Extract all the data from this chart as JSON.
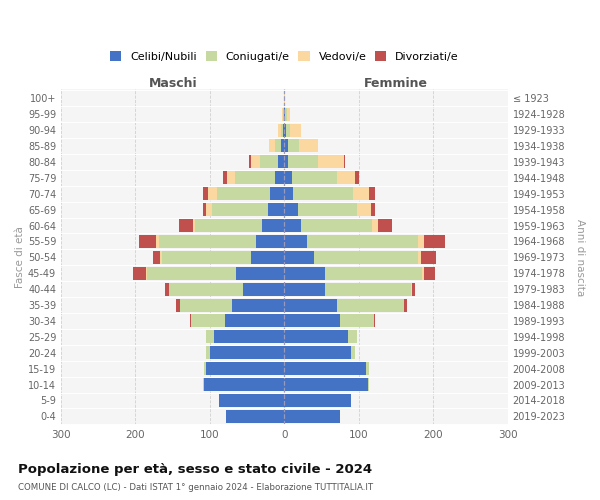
{
  "age_groups": [
    "0-4",
    "5-9",
    "10-14",
    "15-19",
    "20-24",
    "25-29",
    "30-34",
    "35-39",
    "40-44",
    "45-49",
    "50-54",
    "55-59",
    "60-64",
    "65-69",
    "70-74",
    "75-79",
    "80-84",
    "85-89",
    "90-94",
    "95-99",
    "100+"
  ],
  "birth_years": [
    "2019-2023",
    "2014-2018",
    "2009-2013",
    "2004-2008",
    "1999-2003",
    "1994-1998",
    "1989-1993",
    "1984-1988",
    "1979-1983",
    "1974-1978",
    "1969-1973",
    "1964-1968",
    "1959-1963",
    "1954-1958",
    "1949-1953",
    "1944-1948",
    "1939-1943",
    "1934-1938",
    "1929-1933",
    "1924-1928",
    "≤ 1923"
  ],
  "colors": {
    "celibi": "#4472C4",
    "coniugati": "#C6D9A0",
    "vedovi": "#FAD89F",
    "divorziati": "#C0504D"
  },
  "maschi": {
    "celibi": [
      78,
      88,
      108,
      105,
      100,
      95,
      80,
      70,
      55,
      65,
      45,
      38,
      30,
      22,
      20,
      12,
      8,
      5,
      2,
      1,
      0
    ],
    "coniugati": [
      0,
      0,
      2,
      3,
      5,
      10,
      45,
      70,
      100,
      120,
      120,
      130,
      90,
      75,
      70,
      55,
      25,
      8,
      3,
      1,
      0
    ],
    "vedovi": [
      0,
      0,
      0,
      0,
      0,
      0,
      0,
      0,
      0,
      1,
      2,
      5,
      3,
      8,
      12,
      10,
      12,
      8,
      4,
      1,
      0
    ],
    "divorziati": [
      0,
      0,
      0,
      0,
      0,
      0,
      2,
      6,
      5,
      18,
      10,
      22,
      18,
      5,
      8,
      6,
      2,
      0,
      0,
      0,
      0
    ]
  },
  "femmine": {
    "nubili": [
      75,
      90,
      112,
      110,
      90,
      85,
      75,
      70,
      55,
      55,
      40,
      30,
      22,
      18,
      12,
      10,
      5,
      5,
      2,
      1,
      0
    ],
    "coniugate": [
      0,
      0,
      2,
      3,
      5,
      12,
      45,
      90,
      115,
      130,
      140,
      150,
      95,
      80,
      80,
      60,
      40,
      15,
      5,
      2,
      0
    ],
    "vedove": [
      0,
      0,
      0,
      0,
      0,
      0,
      0,
      0,
      1,
      2,
      4,
      8,
      8,
      18,
      22,
      25,
      35,
      25,
      15,
      4,
      1
    ],
    "divorziate": [
      0,
      0,
      0,
      0,
      0,
      0,
      2,
      5,
      5,
      15,
      20,
      28,
      20,
      5,
      8,
      5,
      2,
      0,
      0,
      0,
      0
    ]
  },
  "xlim": 300,
  "title": "Popolazione per età, sesso e stato civile - 2024",
  "subtitle": "COMUNE DI CALCO (LC) - Dati ISTAT 1° gennaio 2024 - Elaborazione TUTTITALIA.IT",
  "maschi_label": "Maschi",
  "femmine_label": "Femmine",
  "ylabel_left": "Fasce di età",
  "ylabel_right": "Anni di nascita",
  "legend_labels": [
    "Celibi/Nubili",
    "Coniugati/e",
    "Vedovi/e",
    "Divorziati/e"
  ],
  "xticks": [
    -300,
    -200,
    -100,
    0,
    100,
    200,
    300
  ],
  "xticklabels": [
    "300",
    "200",
    "100",
    "0",
    "100",
    "200",
    "300"
  ],
  "background_color": "#ffffff",
  "plot_bg": "#f5f5f5",
  "grid_color": "#cccccc"
}
